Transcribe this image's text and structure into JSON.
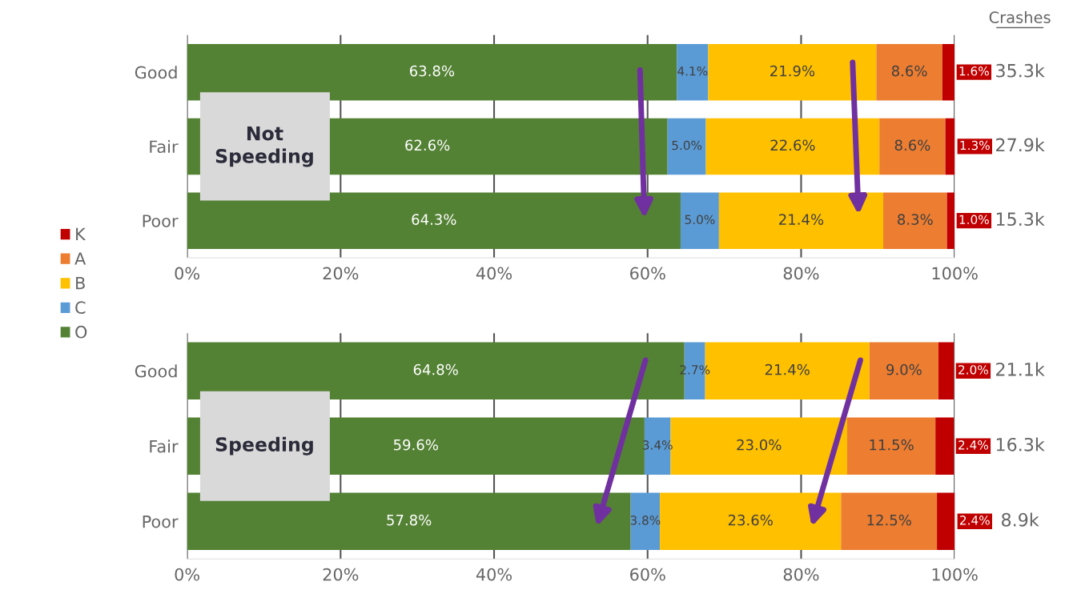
{
  "chart_data": [
    {
      "type": "bar",
      "orientation": "horizontal",
      "stacked": true,
      "categories": [
        "Good",
        "Fair",
        "Poor"
      ],
      "series": [
        {
          "name": "O",
          "color": "#548235",
          "values": [
            63.8,
            62.6,
            64.3
          ],
          "value_labels": [
            "63.8%",
            "62.6%",
            "64.3%"
          ]
        },
        {
          "name": "C",
          "color": "#5b9bd5",
          "values": [
            4.1,
            5.0,
            5.0
          ],
          "value_labels": [
            "4.1%",
            "5.0%",
            "5.0%"
          ]
        },
        {
          "name": "B",
          "color": "#ffc000",
          "values": [
            21.9,
            22.6,
            21.4
          ],
          "value_labels": [
            "21.9%",
            "22.6%",
            "21.4%"
          ]
        },
        {
          "name": "A",
          "color": "#ed7d31",
          "values": [
            8.6,
            8.6,
            8.3
          ],
          "value_labels": [
            "8.6%",
            "8.6%",
            "8.3%"
          ]
        },
        {
          "name": "K",
          "color": "#c00000",
          "values": [
            1.6,
            1.3,
            1.0
          ],
          "value_labels": [
            "1.6%",
            "1.3%",
            "1.0%"
          ]
        }
      ],
      "xlim": [
        0,
        100
      ],
      "xticks": [
        {
          "value": 0,
          "label": "0%"
        },
        {
          "value": 20,
          "label": "20%"
        },
        {
          "value": 40,
          "label": "40%"
        },
        {
          "value": 60,
          "label": "60%"
        },
        {
          "value": 80,
          "label": "80%"
        },
        {
          "value": 100,
          "label": "100%"
        }
      ],
      "grid": "x",
      "legend": "left",
      "annotations": [
        "Not Speeding",
        "Crashes",
        "35.3k",
        "27.9k",
        "15.3k"
      ]
    },
    {
      "type": "bar",
      "orientation": "horizontal",
      "stacked": true,
      "categories": [
        "Good",
        "Fair",
        "Poor"
      ],
      "series": [
        {
          "color": "#548235",
          "values": [
            64.8,
            59.6,
            57.8
          ],
          "value_labels": [
            "64.8%",
            "59.6%",
            "57.8%"
          ]
        },
        {
          "color": "#5b9bd5",
          "values": [
            2.7,
            3.4,
            3.8
          ],
          "value_labels": [
            "2.7%",
            "3.4%",
            "3.8%"
          ]
        },
        {
          "color": "#ffc000",
          "values": [
            21.4,
            23.0,
            23.6
          ],
          "value_labels": [
            "21.4%",
            "23.0%",
            "23.6%"
          ]
        },
        {
          "color": "#ed7d31",
          "values": [
            9.0,
            11.5,
            12.5
          ],
          "value_labels": [
            "9.0%",
            "11.5%",
            "12.5%"
          ]
        },
        {
          "color": "#c00000",
          "values": [
            2.0,
            2.4,
            2.4
          ],
          "value_labels": [
            "2.0%",
            "2.4%",
            "2.4%"
          ]
        }
      ],
      "xlim": [
        0,
        100
      ],
      "xticks": [
        {
          "value": 0,
          "label": "0%"
        },
        {
          "value": 20,
          "label": "20%"
        },
        {
          "value": 40,
          "label": "40%"
        },
        {
          "value": 60,
          "label": "60%"
        },
        {
          "value": 80,
          "label": "80%"
        },
        {
          "value": 100,
          "label": "100%"
        }
      ],
      "grid": "x",
      "annotations": [
        "Speeding",
        "21.1k",
        "16.3k",
        "8.9k"
      ]
    }
  ]
}
